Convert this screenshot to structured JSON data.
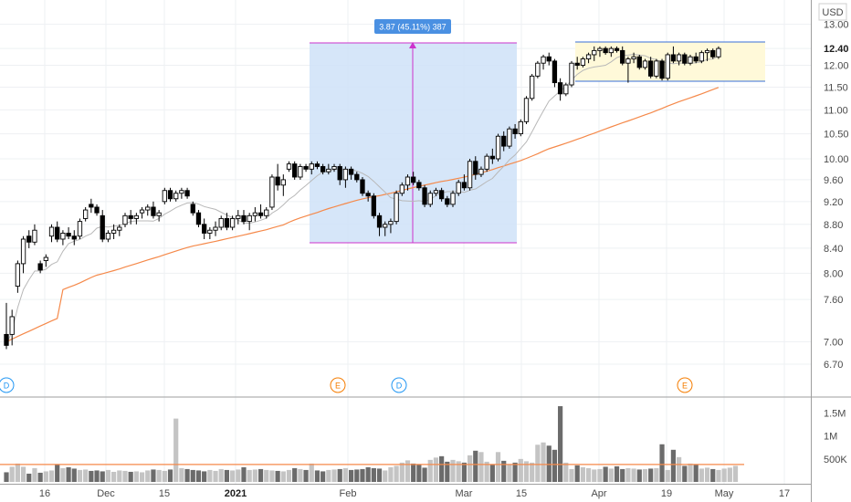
{
  "currency": "USD",
  "price_axis": {
    "ticks": [
      "6.70",
      "7.00",
      "7.60",
      "8.00",
      "8.40",
      "8.80",
      "9.20",
      "9.60",
      "10.00",
      "10.50",
      "11.00",
      "11.50",
      "12.00",
      "12.40",
      "13.00"
    ],
    "scale": "log"
  },
  "volume_axis": {
    "ticks": [
      "500K",
      "1M",
      "1.5M"
    ]
  },
  "time_axis": {
    "ticks": [
      "16",
      "Dec",
      "15",
      "2021",
      "Feb",
      "Mar",
      "15",
      "Apr",
      "19",
      "May",
      "17"
    ]
  },
  "measure": {
    "label": "3.87 (45.11%) 387"
  },
  "events": [
    {
      "letter": "D",
      "color": "#2196f3"
    },
    {
      "letter": "E",
      "color": "#f57c00"
    },
    {
      "letter": "D",
      "color": "#2196f3"
    },
    {
      "letter": "E",
      "color": "#f57c00"
    }
  ],
  "colors": {
    "up": "#ffffff",
    "down": "#000000",
    "wick": "#000000",
    "ma_short": "#b8b8b8",
    "ma_long": "#f5894a",
    "measure_fill": "#cfe2f8",
    "measure_line": "#cc33cc",
    "measure_label_bg": "#4a90e2",
    "range_fill": "#fff9d9",
    "range_line": "#3a6fd8",
    "vol_up": "#c4c4c4",
    "vol_down": "#6b6b6b",
    "vol_ma": "#f5894a"
  },
  "chart_data": {
    "type": "candlestick",
    "title": "",
    "y_range": [
      6.5,
      13.2
    ],
    "volume_range": [
      0,
      1750000
    ],
    "candles": [
      [
        7.1,
        7.55,
        6.9,
        6.95
      ],
      [
        7.1,
        7.45,
        6.95,
        7.35
      ],
      [
        7.8,
        8.2,
        7.7,
        8.15
      ],
      [
        8.15,
        8.6,
        8.0,
        8.55
      ],
      [
        8.6,
        8.7,
        8.4,
        8.5
      ],
      [
        8.5,
        8.8,
        8.45,
        8.7
      ],
      [
        8.15,
        8.2,
        8.0,
        8.05
      ],
      [
        8.2,
        8.3,
        8.1,
        8.25
      ],
      [
        8.6,
        8.8,
        8.5,
        8.75
      ],
      [
        8.75,
        8.85,
        8.5,
        8.55
      ],
      [
        8.55,
        8.7,
        8.45,
        8.65
      ],
      [
        8.65,
        8.75,
        8.55,
        8.6
      ],
      [
        8.6,
        8.7,
        8.45,
        8.55
      ],
      [
        8.6,
        8.9,
        8.55,
        8.85
      ],
      [
        8.9,
        9.1,
        8.85,
        9.05
      ],
      [
        9.15,
        9.25,
        9.0,
        9.1
      ],
      [
        9.1,
        9.15,
        8.95,
        9.0
      ],
      [
        8.95,
        9.05,
        8.5,
        8.55
      ],
      [
        8.55,
        8.7,
        8.5,
        8.65
      ],
      [
        8.65,
        8.8,
        8.55,
        8.7
      ],
      [
        8.7,
        8.8,
        8.6,
        8.75
      ],
      [
        8.8,
        9.0,
        8.75,
        8.95
      ],
      [
        8.95,
        9.05,
        8.8,
        8.9
      ],
      [
        8.9,
        9.0,
        8.8,
        8.95
      ],
      [
        9.0,
        9.1,
        8.9,
        9.05
      ],
      [
        9.05,
        9.15,
        8.95,
        9.1
      ],
      [
        9.1,
        9.2,
        8.9,
        8.95
      ],
      [
        8.95,
        9.05,
        8.85,
        9.0
      ],
      [
        9.2,
        9.45,
        9.15,
        9.4
      ],
      [
        9.4,
        9.45,
        9.2,
        9.25
      ],
      [
        9.25,
        9.4,
        9.2,
        9.35
      ],
      [
        9.35,
        9.45,
        9.25,
        9.4
      ],
      [
        9.4,
        9.45,
        9.25,
        9.3
      ],
      [
        9.15,
        9.2,
        8.95,
        9.0
      ],
      [
        9.0,
        9.05,
        8.75,
        8.8
      ],
      [
        8.8,
        8.9,
        8.55,
        8.65
      ],
      [
        8.65,
        8.75,
        8.55,
        8.7
      ],
      [
        8.7,
        8.85,
        8.6,
        8.75
      ],
      [
        8.75,
        8.95,
        8.7,
        8.9
      ],
      [
        8.9,
        9.0,
        8.7,
        8.75
      ],
      [
        8.75,
        8.95,
        8.7,
        8.9
      ],
      [
        8.9,
        9.05,
        8.8,
        8.95
      ],
      [
        8.95,
        9.05,
        8.8,
        8.85
      ],
      [
        8.85,
        9.0,
        8.7,
        8.95
      ],
      [
        8.95,
        9.1,
        8.85,
        9.0
      ],
      [
        9.0,
        9.15,
        8.9,
        8.95
      ],
      [
        8.95,
        9.1,
        8.9,
        9.05
      ],
      [
        9.1,
        9.7,
        9.05,
        9.65
      ],
      [
        9.65,
        9.9,
        9.4,
        9.5
      ],
      [
        9.5,
        9.7,
        9.3,
        9.6
      ],
      [
        9.8,
        9.95,
        9.75,
        9.9
      ],
      [
        9.9,
        9.95,
        9.6,
        9.65
      ],
      [
        9.65,
        9.9,
        9.6,
        9.85
      ],
      [
        9.85,
        9.9,
        9.75,
        9.8
      ],
      [
        9.8,
        9.95,
        9.7,
        9.9
      ],
      [
        9.9,
        9.95,
        9.8,
        9.85
      ],
      [
        9.85,
        9.9,
        9.7,
        9.75
      ],
      [
        9.75,
        9.9,
        9.7,
        9.8
      ],
      [
        9.8,
        9.9,
        9.75,
        9.85
      ],
      [
        9.85,
        9.9,
        9.5,
        9.6
      ],
      [
        9.6,
        9.85,
        9.45,
        9.8
      ],
      [
        9.8,
        9.85,
        9.6,
        9.7
      ],
      [
        9.7,
        9.75,
        9.55,
        9.6
      ],
      [
        9.6,
        9.65,
        9.3,
        9.35
      ],
      [
        9.35,
        9.4,
        9.2,
        9.3
      ],
      [
        9.3,
        9.35,
        8.9,
        8.95
      ],
      [
        8.95,
        9.0,
        8.6,
        8.75
      ],
      [
        8.75,
        8.85,
        8.6,
        8.8
      ],
      [
        8.8,
        8.9,
        8.65,
        8.85
      ],
      [
        8.85,
        9.4,
        8.8,
        9.35
      ],
      [
        9.35,
        9.55,
        9.3,
        9.5
      ],
      [
        9.5,
        9.7,
        9.4,
        9.65
      ],
      [
        9.65,
        9.75,
        9.5,
        9.55
      ],
      [
        9.55,
        9.6,
        9.4,
        9.45
      ],
      [
        9.45,
        9.5,
        9.1,
        9.15
      ],
      [
        9.15,
        9.4,
        9.1,
        9.35
      ],
      [
        9.35,
        9.45,
        9.3,
        9.4
      ],
      [
        9.4,
        9.45,
        9.2,
        9.25
      ],
      [
        9.25,
        9.3,
        9.1,
        9.15
      ],
      [
        9.15,
        9.4,
        9.1,
        9.35
      ],
      [
        9.35,
        9.6,
        9.3,
        9.55
      ],
      [
        9.55,
        9.7,
        9.4,
        9.45
      ],
      [
        9.45,
        10.0,
        9.4,
        9.95
      ],
      [
        9.95,
        10.05,
        9.6,
        9.7
      ],
      [
        9.7,
        9.85,
        9.65,
        9.8
      ],
      [
        9.8,
        10.1,
        9.75,
        10.05
      ],
      [
        10.05,
        10.2,
        9.9,
        10.0
      ],
      [
        10.0,
        10.5,
        9.95,
        10.45
      ],
      [
        10.45,
        10.55,
        10.15,
        10.25
      ],
      [
        10.25,
        10.65,
        10.2,
        10.6
      ],
      [
        10.6,
        10.7,
        10.4,
        10.5
      ],
      [
        10.5,
        10.8,
        10.45,
        10.75
      ],
      [
        10.75,
        11.3,
        10.7,
        11.25
      ],
      [
        11.25,
        11.8,
        11.2,
        11.75
      ],
      [
        11.75,
        12.1,
        11.7,
        12.05
      ],
      [
        12.05,
        12.25,
        11.9,
        12.2
      ],
      [
        12.2,
        12.3,
        12.0,
        12.1
      ],
      [
        12.1,
        12.15,
        11.5,
        11.6
      ],
      [
        11.6,
        11.7,
        11.2,
        11.35
      ],
      [
        11.35,
        11.6,
        11.3,
        11.55
      ],
      [
        11.55,
        12.1,
        11.5,
        12.05
      ],
      [
        12.05,
        12.2,
        11.9,
        12.0
      ],
      [
        12.0,
        12.2,
        11.95,
        12.15
      ],
      [
        12.15,
        12.3,
        12.05,
        12.25
      ],
      [
        12.25,
        12.45,
        12.1,
        12.35
      ],
      [
        12.35,
        12.45,
        12.2,
        12.4
      ],
      [
        12.4,
        12.45,
        12.25,
        12.3
      ],
      [
        12.3,
        12.45,
        12.2,
        12.4
      ],
      [
        12.4,
        12.45,
        12.3,
        12.35
      ],
      [
        12.35,
        12.45,
        12.0,
        12.05
      ],
      [
        12.05,
        12.2,
        11.6,
        12.15
      ],
      [
        12.15,
        12.3,
        12.05,
        12.2
      ],
      [
        12.2,
        12.25,
        11.9,
        11.95
      ],
      [
        11.95,
        12.15,
        11.9,
        12.1
      ],
      [
        12.1,
        12.2,
        11.7,
        11.75
      ],
      [
        11.75,
        12.15,
        11.7,
        12.1
      ],
      [
        12.1,
        12.15,
        11.65,
        11.7
      ],
      [
        11.7,
        12.3,
        11.65,
        12.25
      ],
      [
        12.25,
        12.45,
        12.05,
        12.1
      ],
      [
        12.1,
        12.3,
        12.0,
        12.25
      ],
      [
        12.25,
        12.3,
        12.0,
        12.05
      ],
      [
        12.05,
        12.25,
        12.0,
        12.2
      ],
      [
        12.2,
        12.3,
        12.05,
        12.1
      ],
      [
        12.1,
        12.35,
        12.05,
        12.3
      ],
      [
        12.3,
        12.4,
        12.1,
        12.35
      ],
      [
        12.35,
        12.4,
        12.15,
        12.2
      ],
      [
        12.2,
        12.45,
        12.15,
        12.4
      ]
    ],
    "volume": [
      210000,
      330000,
      400000,
      330000,
      180000,
      300000,
      200000,
      230000,
      250000,
      370000,
      300000,
      320000,
      290000,
      260000,
      270000,
      240000,
      250000,
      230000,
      260000,
      220000,
      250000,
      240000,
      220000,
      230000,
      210000,
      250000,
      270000,
      260000,
      240000,
      270000,
      1380000,
      300000,
      280000,
      260000,
      250000,
      230000,
      260000,
      240000,
      280000,
      260000,
      250000,
      270000,
      320000,
      260000,
      270000,
      280000,
      260000,
      250000,
      240000,
      230000,
      260000,
      300000,
      280000,
      260000,
      400000,
      250000,
      230000,
      260000,
      270000,
      280000,
      300000,
      260000,
      270000,
      280000,
      320000,
      300000,
      290000,
      250000,
      320000,
      350000,
      420000,
      470000,
      400000,
      370000,
      310000,
      480000,
      530000,
      560000,
      440000,
      480000,
      450000,
      420000,
      580000,
      680000,
      650000,
      440000,
      380000,
      650000,
      460000,
      370000,
      420000,
      500000,
      450000,
      420000,
      810000,
      860000,
      790000,
      700000,
      1650000,
      420000,
      280000,
      360000,
      320000,
      300000,
      270000,
      280000,
      330000,
      290000,
      340000,
      280000,
      300000,
      290000,
      270000,
      280000,
      290000,
      300000,
      820000,
      260000,
      700000,
      540000,
      350000,
      400000,
      370000,
      290000,
      310000,
      280000,
      260000,
      290000,
      310000,
      350000
    ],
    "volume_ma_level": 380000
  }
}
